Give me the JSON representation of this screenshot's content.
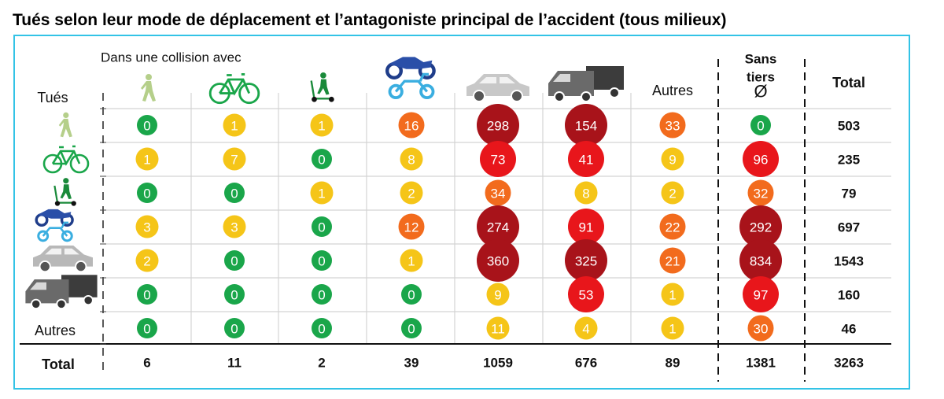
{
  "title": "Tués selon leur mode de déplacement et l’antagoniste principal de l’accident (tous milieux)",
  "colors": {
    "frame": "#33c3e6",
    "green": "#1aa64a",
    "yellow": "#f5c518",
    "orange": "#f26b1d",
    "red": "#e8161b",
    "darkred": "#a8131a"
  },
  "chart_data": {
    "type": "table",
    "caption": "Dans une collision avec",
    "row_header": "Tués",
    "columns": [
      {
        "label": "",
        "icon": "pedestrian-icon"
      },
      {
        "label": "",
        "icon": "bicycle-icon"
      },
      {
        "label": "",
        "icon": "scooter-icon"
      },
      {
        "label": "",
        "icon": "motorcycle-moped-icon"
      },
      {
        "label": "",
        "icon": "car-icon"
      },
      {
        "label": "",
        "icon": "truck-van-icon"
      },
      {
        "label": "Autres",
        "icon": ""
      },
      {
        "label": "Sans tiers",
        "icon": "empty-set-icon",
        "symbol": "Ø"
      },
      {
        "label": "Total",
        "icon": ""
      }
    ],
    "rows": [
      {
        "label": "",
        "icon": "pedestrian-icon",
        "values": [
          0,
          1,
          1,
          16,
          298,
          154,
          33,
          0
        ],
        "total": 503
      },
      {
        "label": "",
        "icon": "bicycle-icon",
        "values": [
          1,
          7,
          0,
          8,
          73,
          41,
          9,
          96
        ],
        "total": 235
      },
      {
        "label": "",
        "icon": "scooter-icon",
        "values": [
          0,
          0,
          1,
          2,
          34,
          8,
          2,
          32
        ],
        "total": 79
      },
      {
        "label": "",
        "icon": "motorcycle-moped-icon",
        "values": [
          3,
          3,
          0,
          12,
          274,
          91,
          22,
          292
        ],
        "total": 697
      },
      {
        "label": "",
        "icon": "car-icon",
        "values": [
          2,
          0,
          0,
          1,
          360,
          325,
          21,
          834
        ],
        "total": 1543
      },
      {
        "label": "",
        "icon": "truck-van-icon",
        "values": [
          0,
          0,
          0,
          0,
          9,
          53,
          1,
          97
        ],
        "total": 160
      },
      {
        "label": "Autres",
        "icon": "",
        "values": [
          0,
          0,
          0,
          0,
          11,
          4,
          1,
          30
        ],
        "total": 46
      }
    ],
    "total_row": {
      "label": "Total",
      "values": [
        6,
        11,
        2,
        39,
        1059,
        676,
        89,
        1381
      ],
      "total": 3263
    },
    "bubble_colors_by_value": [
      {
        "range": "0",
        "color": "#1aa64a"
      },
      {
        "range": "1–11",
        "color": "#f5c518"
      },
      {
        "range": "12–40",
        "color": "#f26b1d"
      },
      {
        "range": "41–99",
        "color": "#e8161b"
      },
      {
        "range": "100+",
        "color": "#a8131a"
      }
    ],
    "grid": true
  }
}
